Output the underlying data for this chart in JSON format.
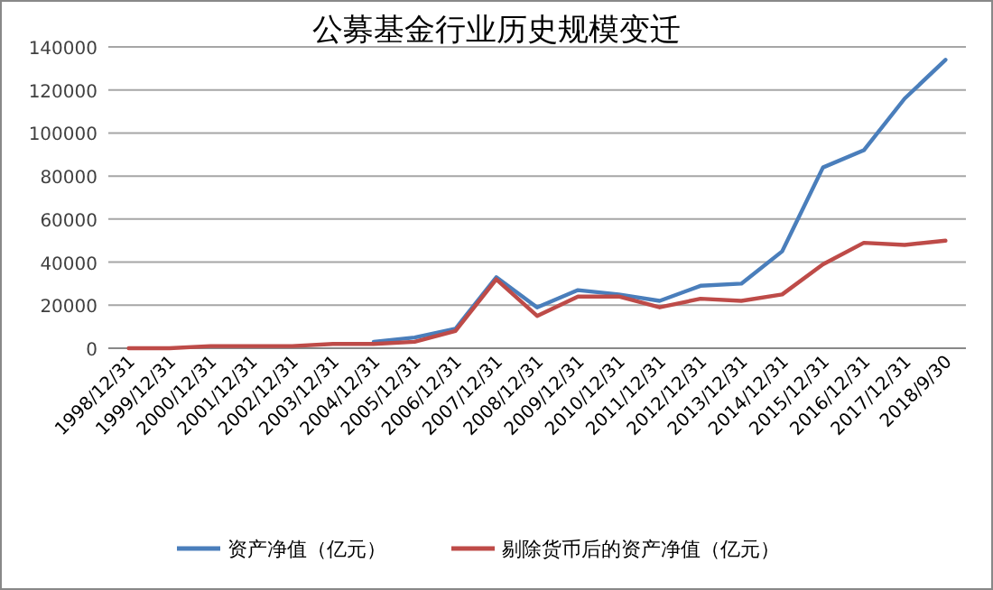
{
  "chart_data": {
    "type": "line",
    "title": "公募基金行业历史规模变迁",
    "categories": [
      "1998/12/31",
      "1999/12/31",
      "2000/12/31",
      "2001/12/31",
      "2002/12/31",
      "2003/12/31",
      "2004/12/31",
      "2005/12/31",
      "2006/12/31",
      "2007/12/31",
      "2008/12/31",
      "2009/12/31",
      "2010/12/31",
      "2011/12/31",
      "2012/12/31",
      "2013/12/31",
      "2014/12/31",
      "2015/12/31",
      "2016/12/31",
      "2017/12/31",
      "2018/9/30"
    ],
    "series": [
      {
        "name": "资产净值（亿元）",
        "color": "#4a7ebb",
        "values": [
          null,
          null,
          null,
          null,
          null,
          null,
          3000,
          5000,
          9000,
          33000,
          19000,
          27000,
          25000,
          22000,
          29000,
          30000,
          45000,
          84000,
          92000,
          116000,
          134000
        ]
      },
      {
        "name": "剔除货币后的资产净值（亿元）",
        "color": "#be4b48",
        "values": [
          0,
          0,
          1000,
          1000,
          1000,
          2000,
          2000,
          3000,
          8000,
          32000,
          15000,
          24000,
          24000,
          19000,
          23000,
          22000,
          25000,
          39000,
          49000,
          48000,
          50000
        ]
      }
    ],
    "ylim": [
      0,
      140000
    ],
    "yticks": [
      0,
      20000,
      40000,
      60000,
      80000,
      100000,
      120000,
      140000
    ],
    "grid": "y",
    "legend": "bottom",
    "marker": "none",
    "line_style": "solid"
  }
}
